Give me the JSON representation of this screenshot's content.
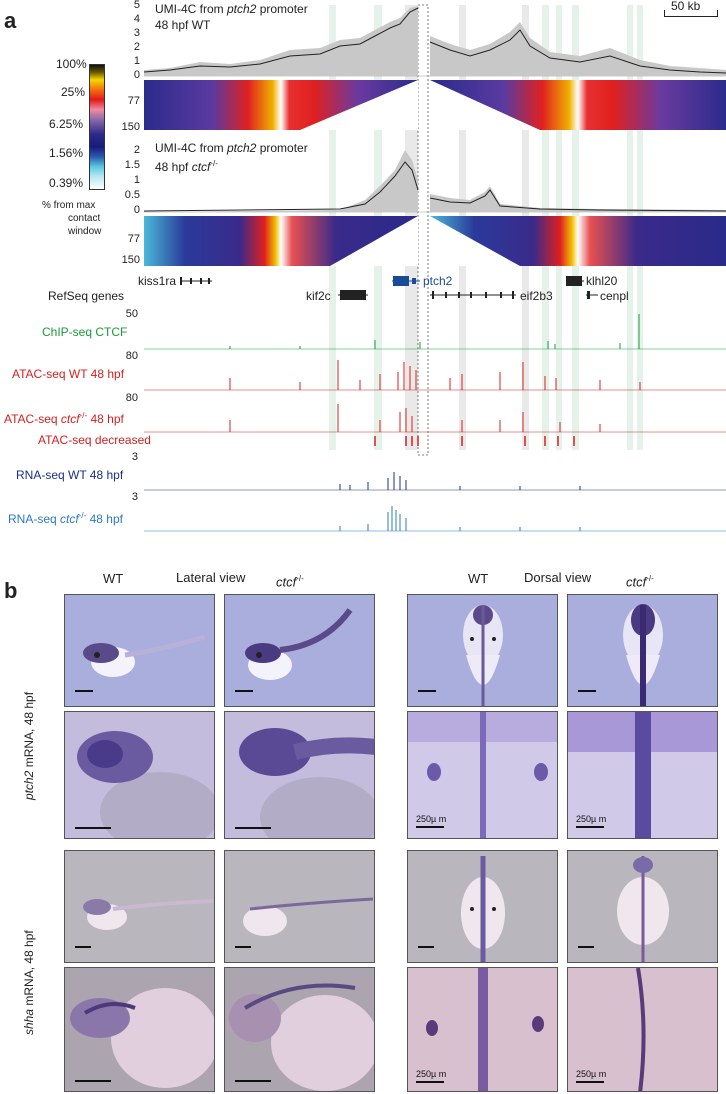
{
  "panel_a": {
    "letter": "a",
    "scale": "50 kb",
    "colorbar": {
      "ticks": [
        "100%",
        "25%",
        "6.25%",
        "1.56%",
        "0.39%"
      ],
      "caption": [
        "% from max",
        "contact",
        "window"
      ]
    },
    "track1": {
      "title_line1": "UMI-4C from ",
      "title_gene": "ptch2",
      "title_line1b": " promoter",
      "title_line2": "48 hpf WT",
      "yticks": [
        "5",
        "4",
        "3",
        "2",
        "1",
        "0"
      ],
      "heat_ticks": [
        "77",
        "150"
      ]
    },
    "track2": {
      "title_line1": "UMI-4C from ",
      "title_gene": "ptch2",
      "title_line1b": " promoter",
      "title_line2a": "48 hpf ",
      "title_line2b": "ctcf",
      "title_sup": "-/-",
      "yticks": [
        "2",
        "1.5",
        "1",
        "0.5",
        "0"
      ],
      "heat_ticks": [
        "77",
        "150"
      ]
    },
    "genes": {
      "track_label": "RefSeq genes",
      "names": [
        "kiss1ra",
        "ptch2",
        "klhl20",
        "kif2c",
        "eif2b3",
        "cenpl"
      ]
    },
    "tracks": [
      {
        "label": "ChIP-seq CTCF",
        "max": "50",
        "color": "#1a9a3a"
      },
      {
        "label": "ATAC-seq WT 48 hpf",
        "max": "80",
        "color": "#d62020"
      },
      {
        "label_a": "ATAC-seq ",
        "label_b": "ctcf",
        "label_sup": "-/-",
        "label_c": " 48 hpf",
        "max": "80",
        "color": "#d62020"
      },
      {
        "label": "ATAC-seq decreased",
        "max": "",
        "color": "#d62020"
      },
      {
        "label": "RNA-seq WT 48 hpf",
        "max": "3",
        "color": "#1a2f8a"
      },
      {
        "label_a": "RNA-seq ",
        "label_b": "ctcf",
        "label_sup": "-/-",
        "label_c": " 48 hpf",
        "max": "3",
        "color": "#2a7ac8"
      }
    ]
  },
  "panel_b": {
    "letter": "b",
    "headers": {
      "wt1": "WT",
      "lateral": "Lateral view",
      "ctcf1": "ctcf",
      "ctcf1_sup": "-/-",
      "wt2": "WT",
      "dorsal": "Dorsal view",
      "ctcf2": "ctcf",
      "ctcf2_sup": "-/-"
    },
    "row_label_1_gene": "ptch2",
    "row_label_1_rest": " mRNA, 48 hpf",
    "row_label_2_gene": "shha",
    "row_label_2_rest": " mRNA, 48 hpf",
    "scalebar_text": [
      "250µ m",
      "250µ m",
      "250µ m",
      "250µ m"
    ]
  }
}
